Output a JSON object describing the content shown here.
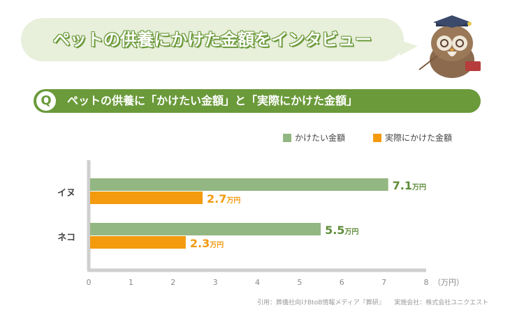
{
  "header": {
    "title": "ペットの供養にかけた金額をインタビュー"
  },
  "question": {
    "badge": "Q",
    "text": "ペットの供養に「かけたい金額」と「実際にかけた金額」"
  },
  "legend": [
    {
      "label": "かけたい金額",
      "color": "#93b782"
    },
    {
      "label": "実際にかけた金額",
      "color": "#f39a0f"
    }
  ],
  "source": "引用：葬儀社向けBtoB情報メディア『葬研』　　実施会社：株式会社ユニクエスト",
  "chart_data": {
    "type": "bar",
    "orientation": "horizontal",
    "categories": [
      "イヌ",
      "ネコ"
    ],
    "series": [
      {
        "name": "かけたい金額",
        "values": [
          7.1,
          5.5
        ],
        "color": "#93b782",
        "label_color": "#5f8c3a"
      },
      {
        "name": "実際にかけた金額",
        "values": [
          2.7,
          2.3
        ],
        "color": "#f39a0f",
        "label_color": "#f39a0f"
      }
    ],
    "value_unit": "万円",
    "xlim": [
      0,
      8
    ],
    "xticks": [
      0,
      1,
      2,
      3,
      4,
      5,
      6,
      7,
      8
    ],
    "xunit_label": "（万円）",
    "grid": false,
    "legend_position": "top-right"
  }
}
